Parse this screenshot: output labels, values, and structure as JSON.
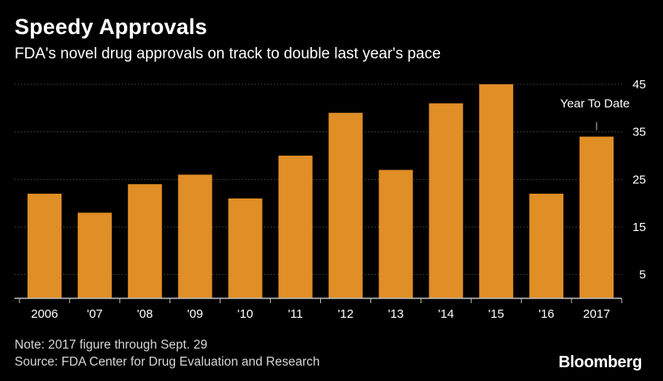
{
  "chart": {
    "title": "Speedy Approvals",
    "subtitle": "FDA's novel drug approvals on track to double last year's pace",
    "note": "Note: 2017 figure through Sept. 29",
    "source": "Source: FDA Center for Drug Evaluation and Research",
    "brand": "Bloomberg",
    "annotation": "Year To Date"
  },
  "colors": {
    "background": "#000000",
    "bar": "#E08E26",
    "grid": "#4a4a4a",
    "axis": "#bfbfbf",
    "text": "#ffffff"
  },
  "chart_data": {
    "type": "bar",
    "title": "Speedy Approvals",
    "subtitle": "FDA's novel drug approvals on track to double last year's pace",
    "categories": [
      "2006",
      "'07",
      "'08",
      "'09",
      "'10",
      "'11",
      "'12",
      "'13",
      "'14",
      "'15",
      "'16",
      "2017"
    ],
    "values": [
      22,
      18,
      24,
      26,
      21,
      30,
      39,
      27,
      41,
      45,
      22,
      34
    ],
    "xlabel": "",
    "ylabel": "",
    "ylim": [
      0,
      45
    ],
    "yticks": [
      5,
      15,
      25,
      35,
      45
    ],
    "y_axis_position": "right",
    "grid": true,
    "legend": "none",
    "annotations": [
      {
        "text": "Year To Date",
        "category": "2017"
      }
    ]
  }
}
